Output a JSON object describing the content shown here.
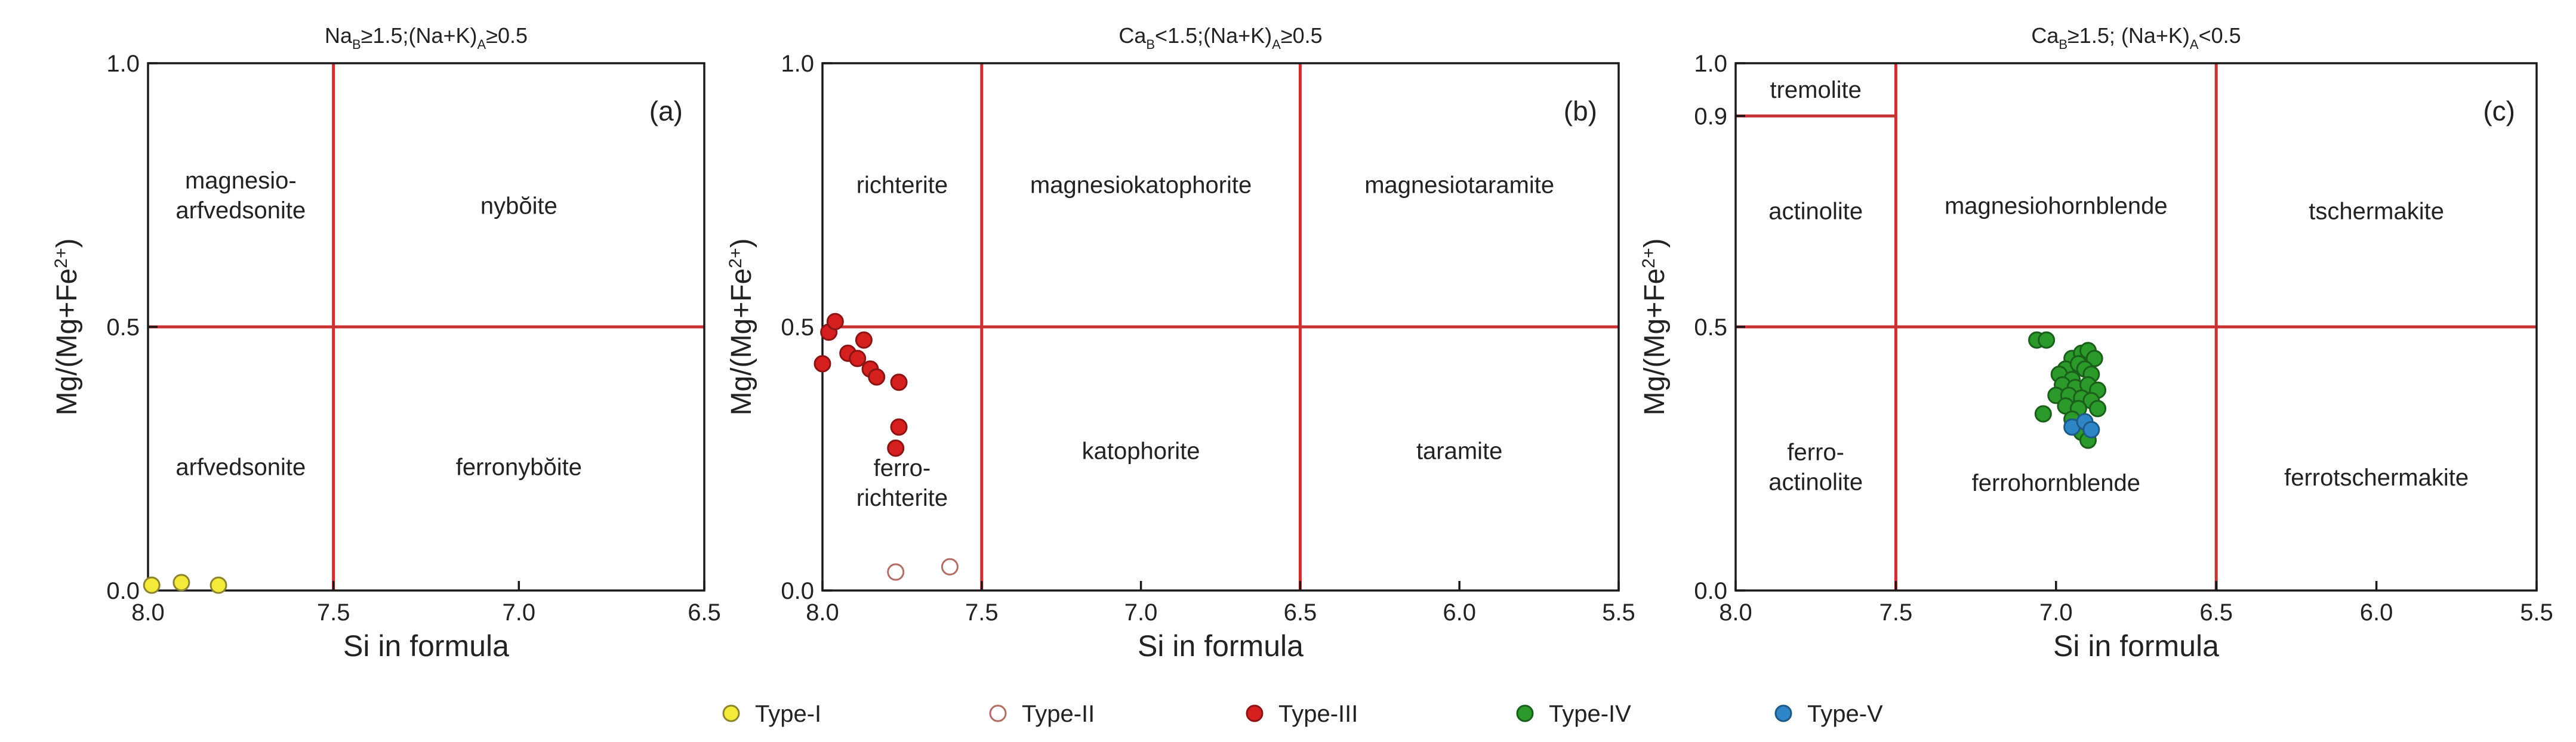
{
  "chart_data": [
    {
      "type": "scatter",
      "panel_label": "(a)",
      "title_main": "Na",
      "title_sub1": "B",
      "title_mid": "≥1.5;(Na+K)",
      "title_sub2": "A",
      "title_end": "≥0.5",
      "xlabel": "Si in formula",
      "ylabel_main": "Mg/(Mg+Fe",
      "ylabel_sup": "2+",
      "ylabel_end": ")",
      "xlim": [
        8.0,
        6.5
      ],
      "ylim": [
        0,
        1
      ],
      "xticks": [
        "8.0",
        "7.5",
        "7.0",
        "6.5"
      ],
      "yticks": [
        "0.0",
        "0.5",
        "1.0"
      ],
      "vlines": [
        7.5
      ],
      "hlines": [
        0.5
      ],
      "regions": [
        {
          "lines": [
            "magnesio-",
            "arfvedsonite"
          ],
          "x": 7.75,
          "y": 0.75
        },
        {
          "lines": [
            "nybŏite"
          ],
          "x": 7.0,
          "y": 0.73
        },
        {
          "lines": [
            "arfvedsonite"
          ],
          "x": 7.75,
          "y": 0.235
        },
        {
          "lines": [
            "ferronybŏite"
          ],
          "x": 7.0,
          "y": 0.235
        }
      ],
      "series": [
        {
          "name": "Type-I",
          "points": [
            [
              7.99,
              0.01
            ],
            [
              7.91,
              0.015
            ],
            [
              7.81,
              0.01
            ]
          ]
        }
      ]
    },
    {
      "type": "scatter",
      "panel_label": "(b)",
      "title_main": "Ca",
      "title_sub1": "B",
      "title_mid": "<1.5;(Na+K)",
      "title_sub2": "A",
      "title_end": "≥0.5",
      "xlabel": "Si in formula",
      "ylabel_main": "Mg/(Mg+Fe",
      "ylabel_sup": "2+",
      "ylabel_end": ")",
      "xlim": [
        8.0,
        5.5
      ],
      "ylim": [
        0,
        1
      ],
      "xticks": [
        "8.0",
        "7.5",
        "7.0",
        "6.5",
        "6.0",
        "5.5"
      ],
      "yticks": [
        "0.0",
        "0.5",
        "1.0"
      ],
      "vlines": [
        7.5,
        6.5
      ],
      "hlines": [
        0.5
      ],
      "regions": [
        {
          "lines": [
            "richterite"
          ],
          "x": 7.75,
          "y": 0.77
        },
        {
          "lines": [
            "magnesiokatophorite"
          ],
          "x": 7.0,
          "y": 0.77
        },
        {
          "lines": [
            "magnesiotaramite"
          ],
          "x": 6.0,
          "y": 0.77
        },
        {
          "lines": [
            "ferro-",
            "richterite"
          ],
          "x": 7.75,
          "y": 0.205
        },
        {
          "lines": [
            "katophorite"
          ],
          "x": 7.0,
          "y": 0.265
        },
        {
          "lines": [
            "taramite"
          ],
          "x": 6.0,
          "y": 0.265
        }
      ],
      "series": [
        {
          "name": "Type-II",
          "points": [
            [
              7.77,
              0.035
            ],
            [
              7.6,
              0.045
            ]
          ]
        },
        {
          "name": "Type-III",
          "points": [
            [
              7.98,
              0.49
            ],
            [
              7.96,
              0.51
            ],
            [
              8.0,
              0.43
            ],
            [
              7.92,
              0.45
            ],
            [
              7.89,
              0.44
            ],
            [
              7.87,
              0.475
            ],
            [
              7.85,
              0.42
            ],
            [
              7.83,
              0.405
            ],
            [
              7.76,
              0.395
            ],
            [
              7.76,
              0.31
            ],
            [
              7.77,
              0.27
            ]
          ]
        }
      ]
    },
    {
      "type": "scatter",
      "panel_label": "(c)",
      "title_main": "Ca",
      "title_sub1": "B",
      "title_mid": "≥1.5; (Na+K)",
      "title_sub2": "A",
      "title_end": "<0.5",
      "xlabel": "Si in formula",
      "ylabel_main": "Mg/(Mg+Fe",
      "ylabel_sup": "2+",
      "ylabel_end": ")",
      "xlim": [
        8.0,
        5.5
      ],
      "ylim": [
        0,
        1
      ],
      "xticks": [
        "8.0",
        "7.5",
        "7.0",
        "6.5",
        "6.0",
        "5.5"
      ],
      "yticks": [
        "0.0",
        "0.5",
        "0.9",
        "1.0"
      ],
      "vlines": [
        7.5,
        6.5
      ],
      "hlines": [
        0.5
      ],
      "subdivision": {
        "x_from": 8.0,
        "x_to": 7.5,
        "y": 0.9
      },
      "regions": [
        {
          "lines": [
            "tremolite"
          ],
          "x": 7.75,
          "y": 0.95
        },
        {
          "lines": [
            "actinolite"
          ],
          "x": 7.75,
          "y": 0.72
        },
        {
          "lines": [
            "magnesiohornblende"
          ],
          "x": 7.0,
          "y": 0.73
        },
        {
          "lines": [
            "tschermakite"
          ],
          "x": 6.0,
          "y": 0.72
        },
        {
          "lines": [
            "ferro-",
            "actinolite"
          ],
          "x": 7.75,
          "y": 0.235
        },
        {
          "lines": [
            "ferrohornblende"
          ],
          "x": 7.0,
          "y": 0.205
        },
        {
          "lines": [
            "ferrotschermakite"
          ],
          "x": 6.0,
          "y": 0.215
        }
      ],
      "series": [
        {
          "name": "Type-IV",
          "points": [
            [
              7.06,
              0.475
            ],
            [
              7.03,
              0.475
            ],
            [
              6.95,
              0.44
            ],
            [
              6.92,
              0.45
            ],
            [
              6.9,
              0.455
            ],
            [
              6.88,
              0.44
            ],
            [
              6.97,
              0.42
            ],
            [
              6.93,
              0.43
            ],
            [
              6.91,
              0.42
            ],
            [
              6.99,
              0.41
            ],
            [
              6.95,
              0.4
            ],
            [
              6.89,
              0.41
            ],
            [
              6.98,
              0.39
            ],
            [
              6.94,
              0.385
            ],
            [
              6.9,
              0.39
            ],
            [
              6.87,
              0.38
            ],
            [
              7.0,
              0.37
            ],
            [
              6.96,
              0.37
            ],
            [
              6.92,
              0.365
            ],
            [
              6.89,
              0.36
            ],
            [
              6.97,
              0.35
            ],
            [
              6.93,
              0.345
            ],
            [
              6.87,
              0.345
            ],
            [
              7.04,
              0.335
            ],
            [
              6.95,
              0.325
            ],
            [
              6.92,
              0.3
            ],
            [
              6.9,
              0.285
            ]
          ]
        },
        {
          "name": "Type-V",
          "points": [
            [
              6.95,
              0.31
            ],
            [
              6.91,
              0.32
            ],
            [
              6.89,
              0.305
            ]
          ]
        }
      ]
    }
  ],
  "legend": [
    {
      "name": "Type-I",
      "label": "Type-I",
      "fill": "#f4ea3a",
      "stroke": "#8c8431"
    },
    {
      "name": "Type-II",
      "label": "Type-II",
      "fill": "#ffffff",
      "stroke": "#b26d64"
    },
    {
      "name": "Type-III",
      "label": "Type-III",
      "fill": "#d61f1f",
      "stroke": "#8d1414"
    },
    {
      "name": "Type-IV",
      "label": "Type-IV",
      "fill": "#2b9a2b",
      "stroke": "#1a5f1a"
    },
    {
      "name": "Type-V",
      "label": "Type-V",
      "fill": "#2f86c6",
      "stroke": "#1d5a88"
    }
  ],
  "colors": {
    "boundary": "#c83232",
    "axis": "#1a1a1a"
  }
}
